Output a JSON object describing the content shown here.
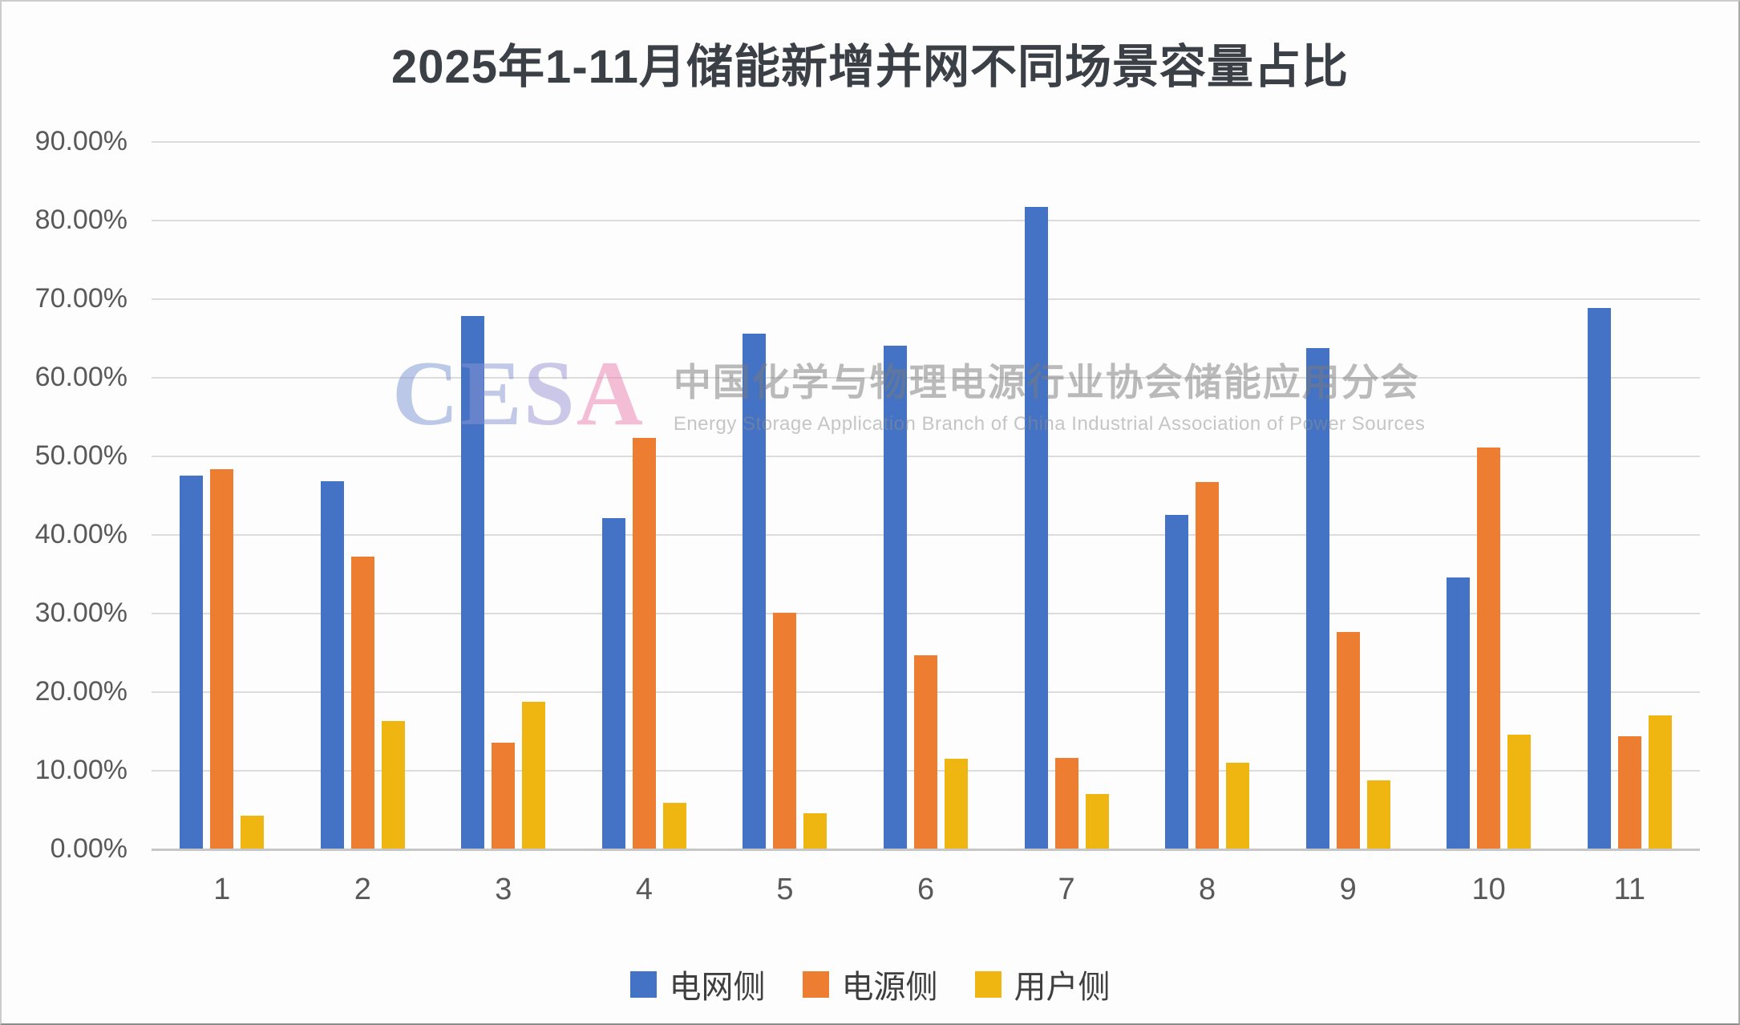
{
  "title": "2025年1-11月储能新增并网不同场景容量占比",
  "legend": {
    "items": [
      {
        "label": "电网侧",
        "color": "#4472C4"
      },
      {
        "label": "电源侧",
        "color": "#ED7D31"
      },
      {
        "label": "用户侧",
        "color": "#EFB611"
      }
    ]
  },
  "watermark": {
    "letters": [
      {
        "char": "C",
        "color": "#7d95d2"
      },
      {
        "char": "E",
        "color": "#8894d4"
      },
      {
        "char": "S",
        "color": "#9a92d4"
      },
      {
        "char": "A",
        "color": "#ec7fb0"
      }
    ],
    "zh": "中国化学与物理电源行业协会储能应用分会",
    "en": "Energy Storage Application Branch of China Industrial Association of Power Sources"
  },
  "chart_data": {
    "type": "bar",
    "title": "2025年1-11月储能新增并网不同场景容量占比",
    "categories": [
      "1",
      "2",
      "3",
      "4",
      "5",
      "6",
      "7",
      "8",
      "9",
      "10",
      "11"
    ],
    "series": [
      {
        "name": "电网侧",
        "color": "#4472C4",
        "values": [
          47.5,
          46.7,
          67.8,
          42.0,
          65.5,
          64.0,
          81.6,
          42.5,
          63.7,
          34.5,
          68.8
        ]
      },
      {
        "name": "电源侧",
        "color": "#ED7D31",
        "values": [
          48.3,
          37.1,
          13.5,
          52.2,
          30.0,
          24.6,
          11.5,
          46.6,
          27.6,
          51.0,
          14.3
        ]
      },
      {
        "name": "用户侧",
        "color": "#EFB611",
        "values": [
          4.2,
          16.2,
          18.7,
          5.8,
          4.5,
          11.4,
          6.9,
          10.9,
          8.7,
          14.5,
          16.9
        ]
      }
    ],
    "xlabel": "",
    "ylabel": "",
    "ylim": [
      0,
      90
    ],
    "y_ticks": [
      "90.00%",
      "80.00%",
      "70.00%",
      "60.00%",
      "50.00%",
      "40.00%",
      "30.00%",
      "20.00%",
      "10.00%",
      "0.00%"
    ],
    "grid": true,
    "legend_position": "bottom"
  }
}
